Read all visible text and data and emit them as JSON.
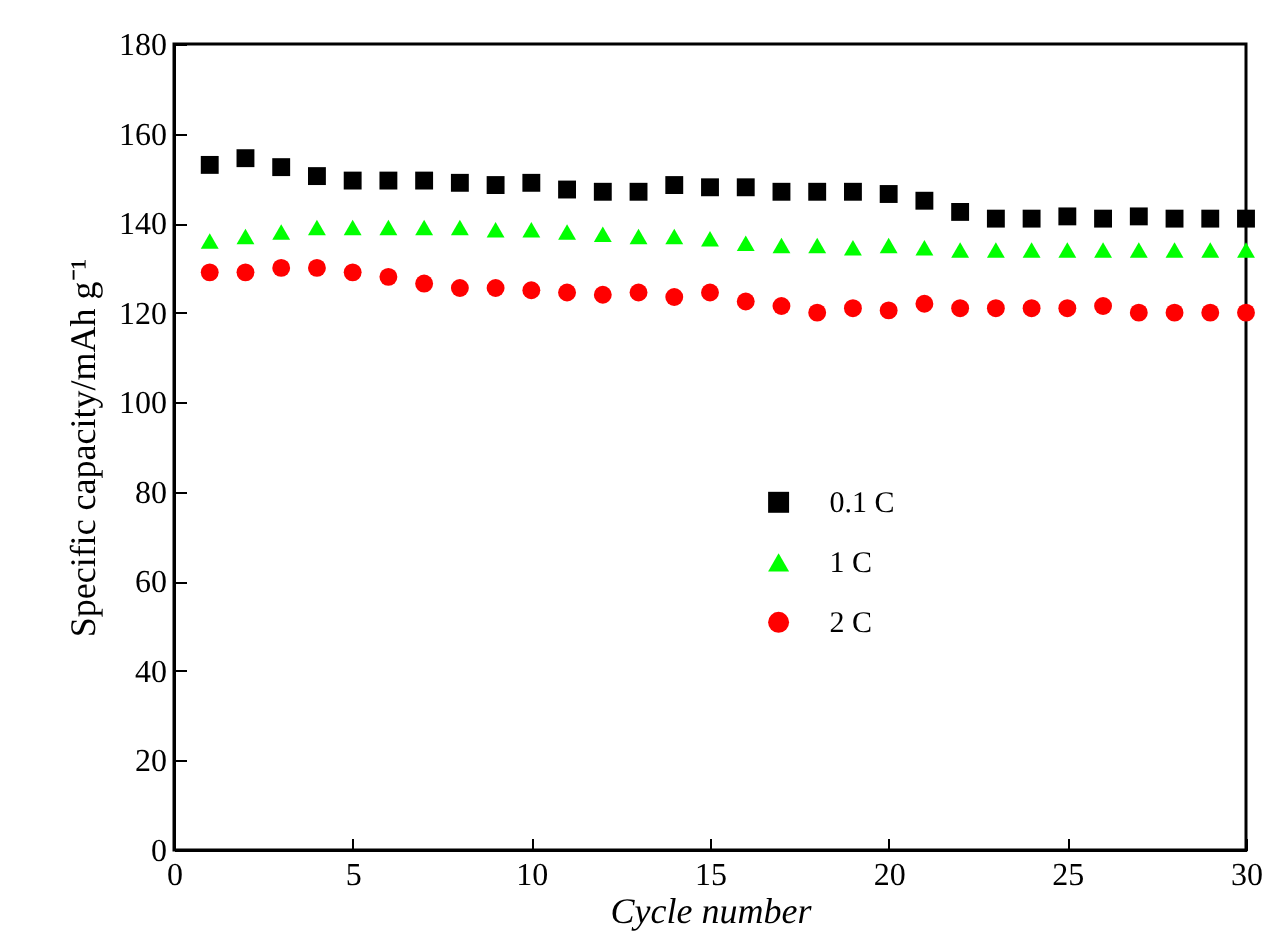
{
  "chart_data": {
    "type": "scatter",
    "xlabel": "Cycle number",
    "ylabel": "Specific capacity/mAh g⁻¹",
    "x": [
      1,
      2,
      3,
      4,
      5,
      6,
      7,
      8,
      9,
      10,
      11,
      12,
      13,
      14,
      15,
      16,
      17,
      18,
      19,
      20,
      21,
      22,
      23,
      24,
      25,
      26,
      27,
      28,
      29,
      30
    ],
    "series": [
      {
        "name": "0.1 C",
        "color": "#000000",
        "marker": "square",
        "values": [
          153,
          154.5,
          152.5,
          150.5,
          149.5,
          149.5,
          149.5,
          149,
          148.5,
          149,
          147.5,
          147,
          147,
          148.5,
          148,
          148,
          147,
          147,
          147,
          146.5,
          145,
          142.5,
          141,
          141,
          141.5,
          141,
          141.5,
          141,
          141,
          141
        ]
      },
      {
        "name": "1 C",
        "color": "#00ff00",
        "marker": "triangle",
        "values": [
          136,
          137,
          138,
          139,
          139,
          139,
          139,
          139,
          138.5,
          138.5,
          138,
          137.5,
          137,
          137,
          136.5,
          135.5,
          135,
          135,
          134.5,
          135,
          134.5,
          134,
          134,
          134,
          134,
          134,
          134,
          134,
          134,
          134
        ]
      },
      {
        "name": "2 C",
        "color": "#ff0000",
        "marker": "circle",
        "values": [
          129,
          129,
          130,
          130,
          129,
          128,
          126.5,
          125.5,
          125.5,
          125,
          124.5,
          124,
          124.5,
          123.5,
          124.5,
          122.5,
          121.5,
          120,
          121,
          120.5,
          122,
          121,
          121,
          121,
          121,
          121.5,
          120,
          120,
          120,
          120
        ]
      }
    ],
    "xlim": [
      0,
      30
    ],
    "xticks": [
      0,
      5,
      10,
      15,
      20,
      25,
      30
    ],
    "ylim": [
      0,
      180
    ],
    "yticks": [
      0,
      20,
      40,
      60,
      80,
      100,
      120,
      140,
      160,
      180
    ],
    "grid": false,
    "legend": "center"
  }
}
